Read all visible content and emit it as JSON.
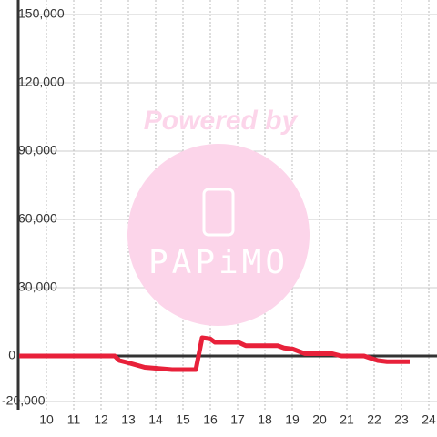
{
  "chart_data": {
    "type": "line",
    "watermark": {
      "line1": "Powered by",
      "line2": "PAPiMO"
    },
    "x": [
      9,
      12.5,
      12.67,
      13,
      13.3,
      13.6,
      14.1,
      14.6,
      15.47,
      15.7,
      16,
      16.17,
      17.03,
      17.3,
      18.47,
      18.7,
      19.03,
      19.47,
      20.47,
      20.8,
      21.63,
      22.13,
      22.47,
      23.3
    ],
    "series": [
      {
        "color": "#e8213a",
        "values": [
          0,
          0,
          -2000,
          -3000,
          -4000,
          -5000,
          -5500,
          -6000,
          -6000,
          8000,
          7500,
          6000,
          6000,
          4500,
          4500,
          3500,
          3000,
          1000,
          1000,
          0,
          0,
          -2000,
          -2500,
          -2500
        ]
      }
    ],
    "xlim": [
      9,
      24.3
    ],
    "xticks": [
      10,
      11,
      12,
      13,
      14,
      15,
      16,
      17,
      18,
      19,
      20,
      21,
      22,
      23,
      24
    ],
    "ylim": [
      -20000,
      150000
    ],
    "yticks": [
      {
        "value": -20000,
        "label": "-20,000"
      },
      0,
      {
        "value": 30000,
        "label": "30,000"
      },
      {
        "value": 60000,
        "label": "60,000"
      },
      {
        "value": 90000,
        "label": "90,000"
      },
      {
        "value": 120000,
        "label": "120,000"
      },
      {
        "value": 150000,
        "label": "150,000"
      }
    ],
    "grid": true
  }
}
